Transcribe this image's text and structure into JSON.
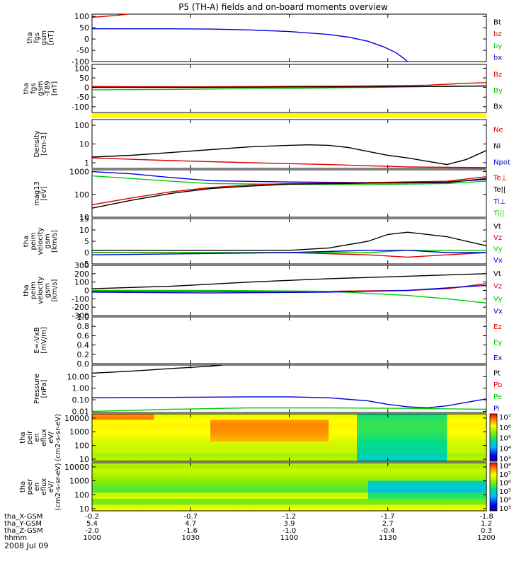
{
  "title": "P5 (TH-A) fields and on-board moments overview",
  "date": "2008 Jul 09",
  "x_axis_rows": [
    {
      "label": "tha_X-GSM",
      "values": [
        "-0.2",
        "-0.7",
        "-1.2",
        "-1.7",
        "-1.8"
      ]
    },
    {
      "label": "tha_Y-GSM",
      "values": [
        "5.4",
        "4.7",
        "3.9",
        "2.7",
        "1.2"
      ]
    },
    {
      "label": "tha_Z-GSM",
      "values": [
        "-2.0",
        "-1.6",
        "-1.0",
        "-0.4",
        "0.3"
      ]
    },
    {
      "label": "hhmm",
      "values": [
        "1000",
        "1030",
        "1100",
        "1130",
        "1200"
      ]
    }
  ],
  "colors": {
    "black": "#000000",
    "red": "#dd0000",
    "green": "#00cc00",
    "blue": "#0000dd",
    "yellow": "#ffff00"
  },
  "chart_data": [
    {
      "type": "line",
      "ylabel": "tha fgs gsm [nT]",
      "yticks": [
        "100",
        "50",
        "0",
        "-50",
        "-100"
      ],
      "ylim": [
        -100,
        110
      ],
      "legend": [
        {
          "name": "Bt",
          "color": "#000000"
        },
        {
          "name": "bz",
          "color": "#dd0000"
        },
        {
          "name": "by",
          "color": "#00cc00"
        },
        {
          "name": "bx",
          "color": "#0000dd"
        }
      ],
      "series": [
        {
          "name": "bz",
          "color": "#dd0000",
          "x": [
            0,
            0.03,
            0.06,
            0.09
          ],
          "y": [
            96,
            100,
            104,
            110
          ]
        },
        {
          "name": "bx",
          "color": "#0000dd",
          "x": [
            0,
            0.2,
            0.3,
            0.35,
            0.4,
            0.5,
            0.6,
            0.65,
            0.7,
            0.74,
            0.77,
            0.79,
            0.8
          ],
          "y": [
            45,
            45,
            44,
            42,
            40,
            33,
            20,
            8,
            -10,
            -35,
            -60,
            -85,
            -100
          ]
        }
      ]
    },
    {
      "type": "line",
      "ylabel": "tha fgs gsm -T89 [nT]",
      "yticks": [
        "100",
        "50",
        "0",
        "-50",
        "-100"
      ],
      "ylim": [
        -130,
        120
      ],
      "legend": [
        {
          "name": "Bz",
          "color": "#dd0000"
        },
        {
          "name": "By",
          "color": "#00cc00"
        },
        {
          "name": "Bx",
          "color": "#000000"
        }
      ],
      "series": [
        {
          "name": "Bz",
          "color": "#dd0000",
          "x": [
            0,
            0.3,
            0.5,
            0.7,
            0.85,
            0.95,
            1.0
          ],
          "y": [
            5,
            4,
            6,
            8,
            12,
            22,
            25
          ]
        },
        {
          "name": "By",
          "color": "#00cc00",
          "x": [
            0,
            0.2,
            0.3,
            0.5,
            0.7,
            0.85,
            1.0
          ],
          "y": [
            -12,
            -10,
            -8,
            -5,
            0,
            5,
            8
          ]
        },
        {
          "name": "Bx",
          "color": "#000000",
          "x": [
            0,
            0.3,
            0.5,
            0.7,
            0.85,
            1.0
          ],
          "y": [
            0,
            0,
            2,
            3,
            5,
            8
          ]
        }
      ]
    },
    {
      "type": "line",
      "ylabel": "Density [cm-3]",
      "yticks": [
        "100",
        "10",
        "1"
      ],
      "log_scale": true,
      "ylim": [
        0.5,
        200
      ],
      "legend": [
        {
          "name": "Ne",
          "color": "#dd0000"
        },
        {
          "name": "Ni",
          "color": "#000000"
        },
        {
          "name": "Npot",
          "color": "#0000dd"
        }
      ],
      "series": [
        {
          "name": "Ni",
          "color": "#000000",
          "x": [
            0,
            0.1,
            0.2,
            0.3,
            0.4,
            0.5,
            0.55,
            0.6,
            0.65,
            0.7,
            0.75,
            0.8,
            0.85,
            0.9,
            0.95,
            1.0
          ],
          "y": [
            2,
            2.5,
            3.5,
            5,
            7,
            8.5,
            9,
            8.5,
            6.5,
            4,
            2.5,
            1.8,
            1.2,
            0.8,
            1.5,
            4.5
          ]
        },
        {
          "name": "Ne",
          "color": "#dd0000",
          "x": [
            0,
            0.2,
            0.4,
            0.6,
            0.8,
            1.0
          ],
          "y": [
            1.8,
            1.3,
            1.0,
            0.8,
            0.6,
            0.55
          ]
        }
      ]
    },
    {
      "type": "line",
      "ylabel": "mag13 [eV]",
      "yticks": [
        "1000",
        "100",
        "10"
      ],
      "log_scale": true,
      "ylim": [
        10,
        1200
      ],
      "legend": [
        {
          "name": "Te⊥",
          "color": "#dd0000"
        },
        {
          "name": "Te||",
          "color": "#000000"
        },
        {
          "name": "Ti⊥",
          "color": "#0000dd"
        },
        {
          "name": "Ti||",
          "color": "#00cc00"
        }
      ],
      "series": [
        {
          "name": "Ti⊥",
          "color": "#0000dd",
          "x": [
            0,
            0.1,
            0.2,
            0.3,
            0.5,
            0.7,
            0.9,
            1.0
          ],
          "y": [
            1000,
            800,
            550,
            400,
            350,
            330,
            350,
            450
          ]
        },
        {
          "name": "Ti||",
          "color": "#00cc00",
          "x": [
            0,
            0.1,
            0.2,
            0.3,
            0.5,
            0.7,
            0.9,
            1.0
          ],
          "y": [
            650,
            500,
            380,
            300,
            280,
            270,
            300,
            380
          ]
        },
        {
          "name": "Te⊥",
          "color": "#dd0000",
          "x": [
            0,
            0.1,
            0.2,
            0.3,
            0.4,
            0.5,
            0.7,
            0.9,
            1.0
          ],
          "y": [
            35,
            70,
            130,
            200,
            260,
            300,
            330,
            380,
            600
          ]
        },
        {
          "name": "Te||",
          "color": "#000000",
          "x": [
            0,
            0.1,
            0.2,
            0.3,
            0.4,
            0.5,
            0.7,
            0.9,
            1.0
          ],
          "y": [
            25,
            55,
            110,
            180,
            230,
            280,
            310,
            330,
            500
          ]
        }
      ]
    },
    {
      "type": "line",
      "ylabel": "tha peim velocity gsm [km/s]",
      "yticks": [
        "15",
        "10",
        "5",
        "0",
        "-5"
      ],
      "ylim": [
        -5,
        15
      ],
      "legend": [
        {
          "name": "Vt",
          "color": "#000000"
        },
        {
          "name": "Vz",
          "color": "#dd0000"
        },
        {
          "name": "Vy",
          "color": "#00cc00"
        },
        {
          "name": "Vx",
          "color": "#0000dd"
        }
      ],
      "series": [
        {
          "name": "Vt",
          "color": "#000000",
          "x": [
            0,
            0.3,
            0.5,
            0.6,
            0.7,
            0.75,
            0.8,
            0.9,
            1.0
          ],
          "y": [
            1,
            1,
            1,
            2,
            5,
            8,
            9,
            7,
            3
          ]
        },
        {
          "name": "Vz",
          "color": "#dd0000",
          "x": [
            0,
            0.5,
            0.7,
            0.8,
            0.9,
            1.0
          ],
          "y": [
            0,
            0,
            -1,
            -2,
            -1,
            0
          ]
        },
        {
          "name": "Vy",
          "color": "#00cc00",
          "x": [
            0,
            0.5,
            0.7,
            0.8,
            0.9,
            1.0
          ],
          "y": [
            0,
            0,
            0,
            1,
            1,
            1
          ]
        },
        {
          "name": "Vx",
          "color": "#0000dd",
          "x": [
            0,
            0.5,
            0.7,
            0.8,
            0.9,
            1.0
          ],
          "y": [
            -1,
            0,
            1,
            1,
            0,
            0
          ]
        }
      ]
    },
    {
      "type": "line",
      "ylabel": "tha peim velocity gsm [km/s]",
      "yticks": [
        "300",
        "200",
        "100",
        "0",
        "-100",
        "-200",
        "-300"
      ],
      "ylim": [
        -300,
        300
      ],
      "legend": [
        {
          "name": "Vt",
          "color": "#000000"
        },
        {
          "name": "Vz",
          "color": "#dd0000"
        },
        {
          "name": "Vy",
          "color": "#00cc00"
        },
        {
          "name": "Vx",
          "color": "#0000dd"
        }
      ],
      "series": [
        {
          "name": "Vt",
          "color": "#000000",
          "x": [
            0,
            0.2,
            0.4,
            0.6,
            0.8,
            1.0
          ],
          "y": [
            20,
            50,
            100,
            140,
            170,
            200
          ]
        },
        {
          "name": "Vz",
          "color": "#dd0000",
          "x": [
            0,
            0.3,
            0.6,
            0.8,
            0.9,
            1.0
          ],
          "y": [
            -10,
            -15,
            -10,
            0,
            20,
            80
          ]
        },
        {
          "name": "Vy",
          "color": "#00cc00",
          "x": [
            0,
            0.3,
            0.6,
            0.8,
            0.9,
            1.0
          ],
          "y": [
            0,
            0,
            -10,
            -60,
            -100,
            -150
          ]
        },
        {
          "name": "Vx",
          "color": "#0000dd",
          "x": [
            0,
            0.3,
            0.6,
            0.8,
            0.9,
            1.0
          ],
          "y": [
            -20,
            -30,
            -20,
            0,
            30,
            60
          ]
        }
      ]
    },
    {
      "type": "line",
      "ylabel": "E=-VxB [mV/m]",
      "yticks": [
        "1.0",
        "0.8",
        "0.6",
        "0.4",
        "0.2",
        "0.0"
      ],
      "ylim": [
        0,
        1
      ],
      "legend": [
        {
          "name": "Ez",
          "color": "#dd0000"
        },
        {
          "name": "Ey",
          "color": "#00cc00"
        },
        {
          "name": "Ex",
          "color": "#0000dd"
        }
      ],
      "series": []
    },
    {
      "type": "line",
      "ylabel": "Pressure [nPa]",
      "yticks": [
        "10.00",
        "1.00",
        "0.10",
        "0.01"
      ],
      "log_scale": true,
      "ylim": [
        0.008,
        100
      ],
      "legend": [
        {
          "name": "Pt",
          "color": "#000000"
        },
        {
          "name": "Pb",
          "color": "#dd0000"
        },
        {
          "name": "Pe",
          "color": "#00cc00"
        },
        {
          "name": "Pi",
          "color": "#0000dd"
        }
      ],
      "series": [
        {
          "name": "Pt",
          "color": "#000000",
          "x": [
            0,
            0.1,
            0.2,
            0.3,
            0.33
          ],
          "y": [
            20,
            30,
            50,
            80,
            100
          ]
        },
        {
          "name": "Pi",
          "color": "#0000dd",
          "x": [
            0,
            0.2,
            0.4,
            0.5,
            0.6,
            0.7,
            0.75,
            0.8,
            0.85,
            0.9,
            0.95,
            1.0
          ],
          "y": [
            0.15,
            0.16,
            0.18,
            0.18,
            0.15,
            0.08,
            0.04,
            0.025,
            0.02,
            0.03,
            0.06,
            0.12
          ]
        },
        {
          "name": "Pe",
          "color": "#00cc00",
          "x": [
            0,
            0.2,
            0.4,
            0.6,
            0.8,
            1.0
          ],
          "y": [
            0.01,
            0.015,
            0.02,
            0.02,
            0.018,
            0.015
          ]
        }
      ]
    },
    {
      "type": "heatmap",
      "ylabel": "tha peir en eflux eV/ (cm2-s-sr-eV)",
      "yticks": [
        "10000",
        "1000",
        "100",
        "10"
      ],
      "log_scale": true,
      "ylim": [
        7,
        20000
      ],
      "colorbar": {
        "ticks": [
          "10⁷",
          "10⁶",
          "10⁵",
          "10⁴",
          "10³"
        ],
        "range": [
          3,
          7
        ]
      }
    },
    {
      "type": "heatmap",
      "ylabel": "tha peer en eflux eV/ (cm2-s-sr-eV)",
      "yticks": [
        "10000",
        "1000",
        "100",
        "10"
      ],
      "log_scale": true,
      "ylim": [
        7,
        20000
      ],
      "colorbar": {
        "ticks": [
          "10⁸",
          "10⁷",
          "10⁶",
          "10⁵",
          "10⁴",
          "10³"
        ],
        "range": [
          3,
          8
        ]
      }
    }
  ]
}
